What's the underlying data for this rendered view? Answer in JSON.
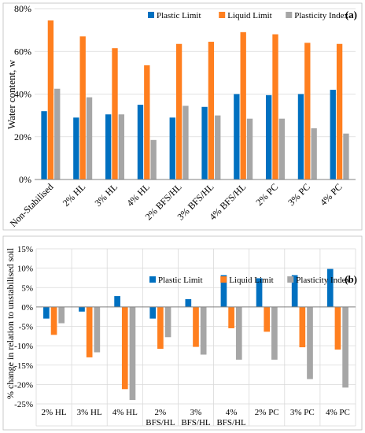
{
  "colors": {
    "plastic_limit": "#0070C0",
    "liquid_limit": "#FF7F1F",
    "plasticity_index": "#A6A6A6",
    "gridline": "#D9D9D9",
    "axis": "#808080"
  },
  "chart_data": [
    {
      "type": "bar",
      "panel_label": "(a)",
      "categories": [
        "Non-Stabilised",
        "2% HL",
        "3% HL",
        "4% HL",
        "2% BFS/HL",
        "3% BFS/HL",
        "4% BFS/HL",
        "2% PC",
        "3% PC",
        "4% PC"
      ],
      "series": [
        {
          "name": "Plastic Limit",
          "color": "#0070C0",
          "values": [
            32,
            29,
            30.5,
            35,
            29,
            34,
            40,
            39.5,
            40,
            42
          ]
        },
        {
          "name": "Liquid Limit",
          "color": "#FF7F1F",
          "values": [
            74.5,
            67,
            61.5,
            53.5,
            63.5,
            64.5,
            69,
            68,
            64,
            63.5
          ]
        },
        {
          "name": "Plasticity Index",
          "color": "#A6A6A6",
          "values": [
            42.5,
            38.5,
            30.5,
            18.5,
            34.5,
            30,
            28.5,
            28.5,
            24,
            21.5
          ]
        }
      ],
      "ylabel": "Water content, w",
      "ylim": [
        0,
        80
      ],
      "yticks": [
        0,
        20,
        40,
        60,
        80
      ],
      "ytick_labels": [
        "0%",
        "20%",
        "40%",
        "60%",
        "80%"
      ],
      "grid": "horizontal",
      "legend": "top-right"
    },
    {
      "type": "bar",
      "panel_label": "(b)",
      "categories": [
        "2% HL",
        "3% HL",
        "4% HL",
        "2% BFS/HL",
        "3% BFS/HL",
        "4% BFS/HL",
        "2% PC",
        "3% PC",
        "4% PC"
      ],
      "category_lines": [
        [
          "2% HL"
        ],
        [
          "3% HL"
        ],
        [
          "4% HL"
        ],
        [
          "2%",
          "BFS/HL"
        ],
        [
          "3%",
          "BFS/HL"
        ],
        [
          "4%",
          "BFS/HL"
        ],
        [
          "2% PC"
        ],
        [
          "3% PC"
        ],
        [
          "4% PC"
        ]
      ],
      "series": [
        {
          "name": "Plastic Limit",
          "color": "#0070C0",
          "values": [
            -3,
            -1.2,
            2.8,
            -3,
            2,
            8.2,
            7.4,
            8.2,
            9.8
          ]
        },
        {
          "name": "Liquid Limit",
          "color": "#FF7F1F",
          "values": [
            -7.2,
            -13,
            -21.2,
            -10.8,
            -10.3,
            -5.5,
            -6.4,
            -10.4,
            -11
          ]
        },
        {
          "name": "Plasticity Index",
          "color": "#A6A6A6",
          "values": [
            -4.2,
            -11.7,
            -24,
            -7.8,
            -12.3,
            -13.6,
            -13.6,
            -18.6,
            -20.8
          ]
        }
      ],
      "ylabel": "% change in relation to unstabilised soil",
      "ylim": [
        -25,
        15
      ],
      "yticks": [
        -25,
        -20,
        -15,
        -10,
        -5,
        0,
        5,
        10,
        15
      ],
      "ytick_labels": [
        "-25%",
        "-20%",
        "-15%",
        "-10%",
        "-5%",
        "0%",
        "5%",
        "10%",
        "15%"
      ],
      "grid": "horizontal-and-vertical",
      "legend": "top-right"
    }
  ]
}
